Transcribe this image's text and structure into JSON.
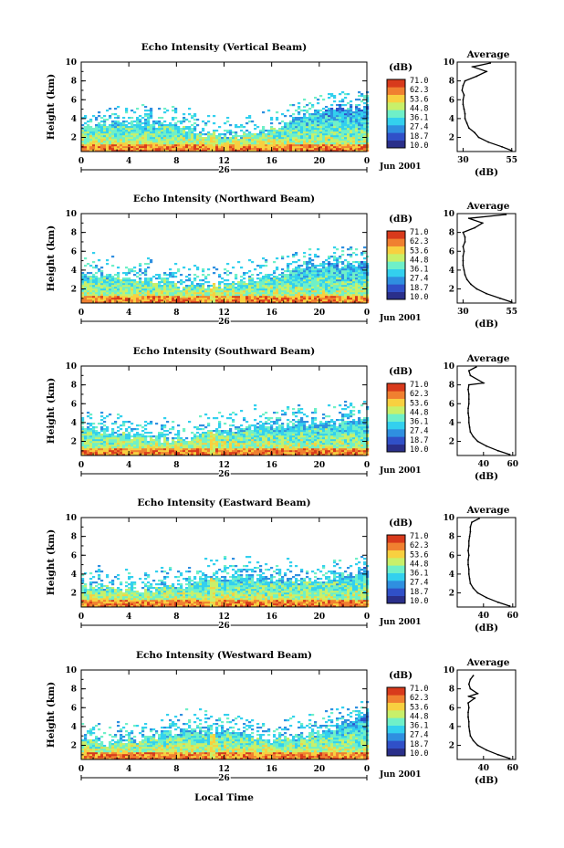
{
  "colorbar": {
    "unit": "(dB)",
    "ticks": [
      "71.0",
      "62.3",
      "53.6",
      "44.8",
      "36.1",
      "27.4",
      "18.7",
      "10.0"
    ],
    "colors": [
      "#2a2f8a",
      "#3050c8",
      "#2f8fe0",
      "#33d0ee",
      "#6ff0c8",
      "#c8f06a",
      "#f8d040",
      "#f08030",
      "#d83a1c"
    ]
  },
  "xaxis": {
    "ticks": [
      "0",
      "4",
      "8",
      "12",
      "16",
      "20",
      "0"
    ],
    "range": [
      0,
      24
    ],
    "day_label": "26",
    "month_label": "Jun 2001",
    "title": "Local Time"
  },
  "chart_data": [
    {
      "type": "heatmap",
      "title": "Echo Intensity (Vertical Beam)",
      "ylabel": "Height (km)",
      "yticks": [
        "2",
        "4",
        "6",
        "8",
        "10"
      ],
      "ylim": [
        0.5,
        10
      ],
      "profile": {
        "title": "Average",
        "xlabel": "(dB)",
        "xticks": [
          "30",
          "55"
        ],
        "xlim": [
          27,
          57
        ],
        "height": [
          0.6,
          1.0,
          1.5,
          2.0,
          2.5,
          3.0,
          3.5,
          4.0,
          4.5,
          5.0,
          5.5,
          6.0,
          6.5,
          7.0,
          7.5,
          8.0,
          8.5,
          9.0,
          9.5,
          9.9
        ],
        "value": [
          55,
          50,
          43,
          38,
          36,
          33,
          32,
          31,
          31,
          30.5,
          30,
          30,
          30.5,
          29.5,
          30,
          31,
          37,
          42,
          35,
          44
        ]
      }
    },
    {
      "type": "heatmap",
      "title": "Echo Intensity (Northward Beam)",
      "ylabel": "Height (km)",
      "yticks": [
        "2",
        "4",
        "6",
        "8",
        "10"
      ],
      "ylim": [
        0.5,
        10
      ],
      "profile": {
        "title": "Average",
        "xlabel": "(dB)",
        "xticks": [
          "30",
          "55"
        ],
        "xlim": [
          27,
          57
        ],
        "height": [
          0.6,
          1.0,
          1.5,
          2.0,
          2.5,
          3.0,
          3.5,
          4.0,
          4.5,
          5.0,
          5.5,
          6.0,
          6.5,
          7.0,
          7.5,
          8.0,
          8.5,
          9.0,
          9.5,
          9.9
        ],
        "value": [
          55,
          49,
          42,
          37,
          34,
          32,
          31,
          30.5,
          30,
          30,
          30,
          30.5,
          30,
          31,
          31,
          30,
          36,
          40,
          33,
          52
        ]
      }
    },
    {
      "type": "heatmap",
      "title": "Echo Intensity (Southward Beam)",
      "ylabel": "Height (km)",
      "yticks": [
        "2",
        "4",
        "6",
        "8",
        "10"
      ],
      "ylim": [
        0.5,
        10
      ],
      "profile": {
        "title": "Average",
        "xlabel": "(dB)",
        "xticks": [
          "40",
          "60"
        ],
        "xlim": [
          22,
          62
        ],
        "height": [
          0.6,
          1.0,
          1.5,
          2.0,
          2.5,
          3.0,
          3.5,
          4.0,
          4.5,
          5.0,
          5.5,
          6.0,
          6.5,
          7.0,
          7.5,
          8.0,
          8.2,
          9.0,
          9.5,
          9.9
        ],
        "value": [
          58,
          50,
          42,
          36,
          33,
          31,
          30.5,
          30,
          30,
          29.5,
          29.5,
          30,
          30,
          30,
          29.5,
          30,
          40,
          31,
          30,
          35
        ]
      }
    },
    {
      "type": "heatmap",
      "title": "Echo Intensity (Eastward Beam)",
      "ylabel": "Height (km)",
      "yticks": [
        "2",
        "4",
        "6",
        "8",
        "10"
      ],
      "ylim": [
        0.5,
        10
      ],
      "profile": {
        "title": "Average",
        "xlabel": "(dB)",
        "xticks": [
          "40",
          "60"
        ],
        "xlim": [
          22,
          62
        ],
        "height": [
          0.6,
          1.0,
          1.5,
          2.0,
          2.5,
          3.0,
          3.5,
          4.0,
          4.5,
          5.0,
          5.5,
          6.0,
          6.5,
          7.0,
          7.5,
          8.0,
          8.5,
          9.0,
          9.5,
          9.9
        ],
        "value": [
          58,
          50,
          42,
          36,
          33,
          31,
          30.5,
          30,
          30,
          29.5,
          29.5,
          30,
          29.5,
          30,
          30,
          30.5,
          31,
          31,
          32,
          37
        ]
      }
    },
    {
      "type": "heatmap",
      "title": "Echo Intensity (Westward Beam)",
      "ylabel": "Height (km)",
      "yticks": [
        "2",
        "4",
        "6",
        "8",
        "10"
      ],
      "ylim": [
        0.5,
        10
      ],
      "profile": {
        "title": "Average",
        "xlabel": "(dB)",
        "xticks": [
          "40",
          "60"
        ],
        "xlim": [
          22,
          62
        ],
        "height": [
          0.6,
          1.0,
          1.5,
          2.0,
          2.5,
          3.0,
          3.5,
          4.0,
          4.5,
          5.0,
          5.5,
          6.0,
          6.5,
          7.0,
          7.2,
          7.5,
          8.0,
          8.5,
          9.0,
          9.4
        ],
        "value": [
          58,
          50,
          42,
          36,
          33,
          31,
          30.5,
          30,
          30,
          29.5,
          29.5,
          30,
          29.5,
          34,
          30,
          36,
          31,
          30,
          31,
          33
        ]
      }
    }
  ]
}
